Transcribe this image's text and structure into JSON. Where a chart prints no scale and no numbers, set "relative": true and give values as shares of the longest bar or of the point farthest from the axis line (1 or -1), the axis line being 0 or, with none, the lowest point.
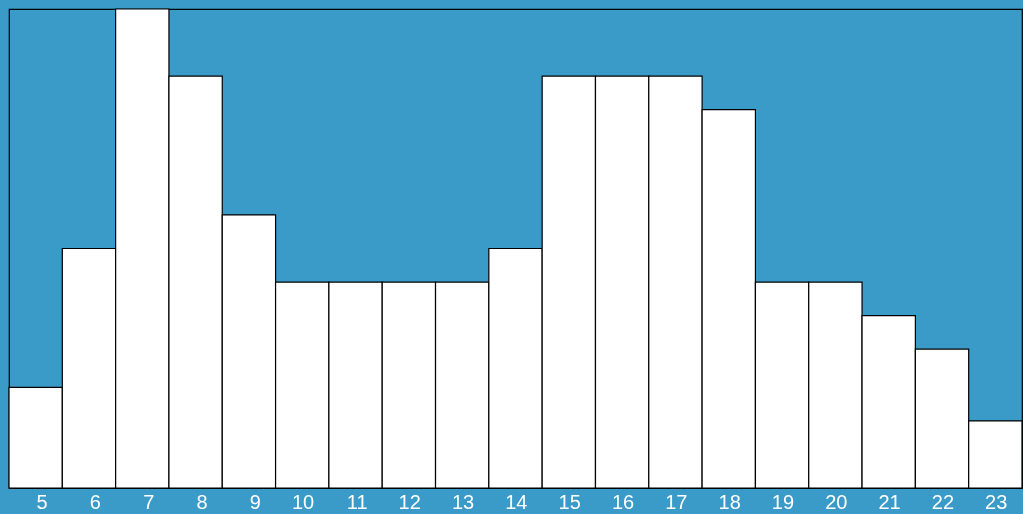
{
  "chart_data": {
    "type": "bar",
    "relative": true,
    "categories": [
      "5",
      "6",
      "7",
      "8",
      "9",
      "10",
      "11",
      "12",
      "13",
      "14",
      "15",
      "16",
      "17",
      "18",
      "19",
      "20",
      "21",
      "22",
      "23"
    ],
    "values": [
      0.21,
      0.5,
      1,
      0.86,
      0.57,
      0.43,
      0.43,
      0.43,
      0.43,
      0.5,
      0.86,
      0.86,
      0.86,
      0.79,
      0.43,
      0.43,
      0.36,
      0.29,
      0.14
    ],
    "color": "#ffffff"
  }
}
